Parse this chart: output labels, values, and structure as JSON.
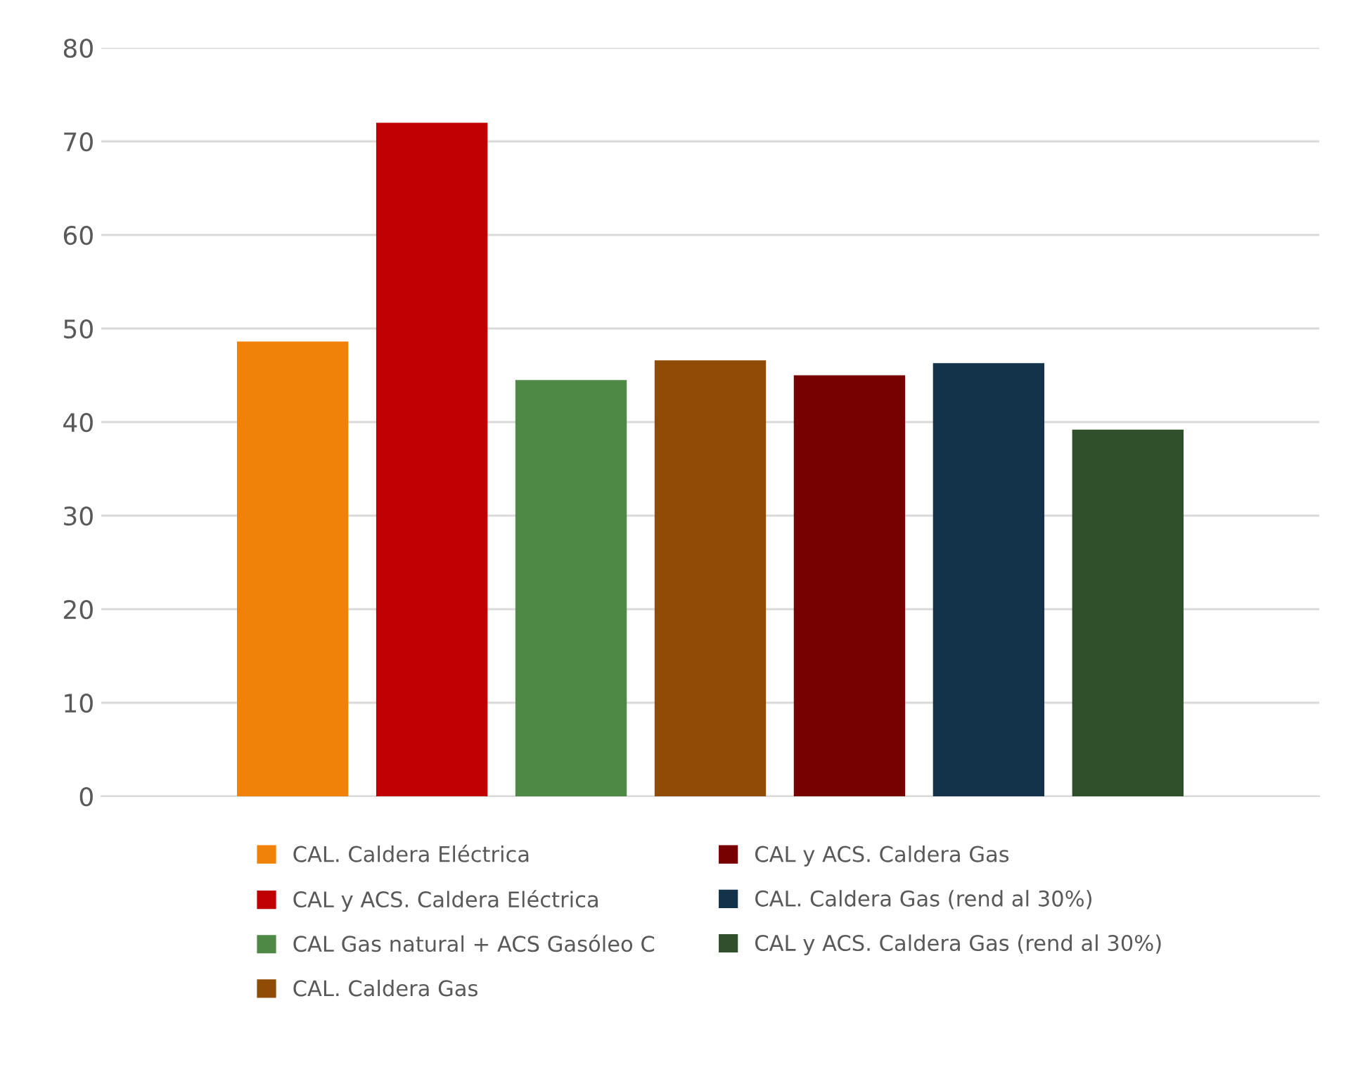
{
  "chart_data": {
    "type": "bar",
    "categories": [
      null
    ],
    "series": [
      {
        "name": "CAL. Caldera Eléctrica",
        "color": "#f0820a",
        "values": [
          48.6
        ]
      },
      {
        "name": "CAL y ACS. Caldera Eléctrica",
        "color": "#c00000",
        "values": [
          72.0
        ]
      },
      {
        "name": "CAL Gas natural + ACS Gasóleo C",
        "color": "#4e8a45",
        "values": [
          44.5
        ]
      },
      {
        "name": "CAL. Caldera Gas",
        "color": "#904c06",
        "values": [
          46.6
        ]
      },
      {
        "name": "CAL y ACS. Caldera Gas",
        "color": "#770000",
        "values": [
          45.0
        ]
      },
      {
        "name": "CAL. Caldera Gas (rend al 30%)",
        "color": "#12334a",
        "values": [
          46.3
        ]
      },
      {
        "name": "CAL y ACS. Caldera Gas (rend al 30%)",
        "color": "#30502b",
        "values": [
          39.2
        ]
      }
    ],
    "ylim": [
      0,
      80
    ],
    "yticks": [
      0,
      10,
      20,
      30,
      40,
      50,
      60,
      70,
      80
    ],
    "grid": "y",
    "legend": "bottom"
  }
}
